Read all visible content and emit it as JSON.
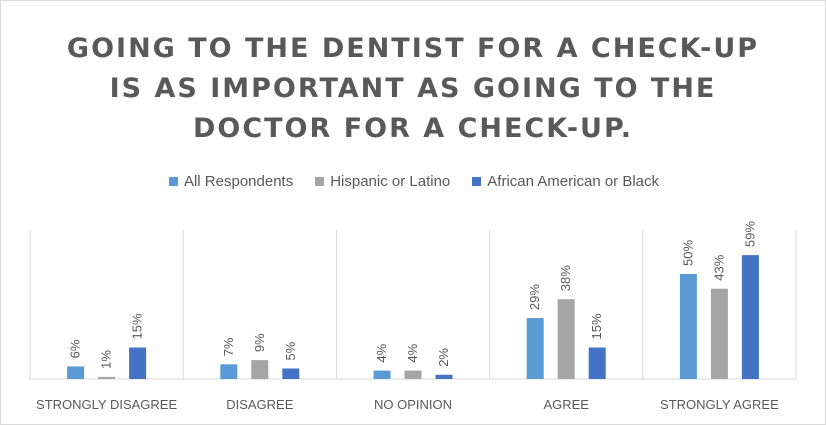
{
  "chart_data": {
    "type": "bar",
    "title": "GOING TO THE DENTIST FOR A CHECK-UP IS AS IMPORTANT AS GOING TO THE DOCTOR FOR A CHECK-UP.",
    "categories": [
      "STRONGLY DISAGREE",
      "DISAGREE",
      "NO OPINION",
      "AGREE",
      "STRONGLY AGREE"
    ],
    "series": [
      {
        "name": "All Respondents",
        "color": "#5b9bd5",
        "values": [
          6,
          7,
          4,
          29,
          50
        ]
      },
      {
        "name": "Hispanic or Latino",
        "color": "#a5a5a5",
        "values": [
          1,
          9,
          4,
          38,
          43
        ]
      },
      {
        "name": "African American or Black",
        "color": "#4472c4",
        "values": [
          15,
          5,
          2,
          15,
          59
        ]
      }
    ],
    "value_suffix": "%",
    "ylim": [
      0,
      100
    ],
    "xlabel": "",
    "ylabel": "",
    "grid": false,
    "legend_position": "top"
  }
}
